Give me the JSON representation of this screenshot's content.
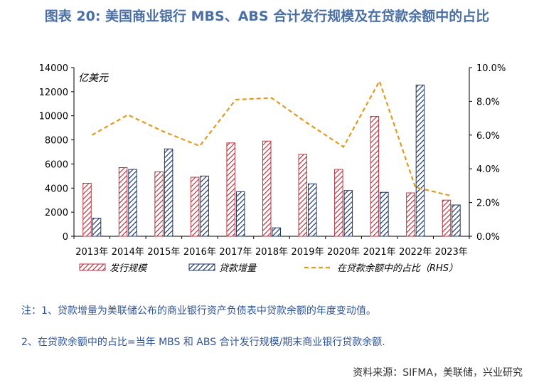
{
  "title": "图表 20: 美国商业银行 MBS、ABS 合计发行规模及在贷款余额中的占比",
  "chart_data": {
    "type": "bar",
    "categories": [
      "2013年",
      "2014年",
      "2015年",
      "2016年",
      "2017年",
      "2018年",
      "2019年",
      "2020年",
      "2021年",
      "2022年",
      "2023年"
    ],
    "series": [
      {
        "name": "发行规模",
        "type": "bar",
        "color": "#b5343f",
        "values": [
          4400,
          5700,
          5350,
          4900,
          7750,
          7900,
          6800,
          5550,
          9950,
          3600,
          3000
        ]
      },
      {
        "name": "贷款增量",
        "type": "bar",
        "color": "#1f3864",
        "values": [
          1500,
          5550,
          7250,
          5000,
          3700,
          700,
          4350,
          3800,
          3650,
          12550,
          2600
        ]
      },
      {
        "name": "在贷款余额中的占比（RHS）",
        "type": "line",
        "axis": "right",
        "color": "#e09b1e",
        "values": [
          6.0,
          7.2,
          6.2,
          5.35,
          8.1,
          8.2,
          6.7,
          5.3,
          9.2,
          2.9,
          2.4
        ]
      }
    ],
    "ylim": [
      0,
      14000
    ],
    "y_ticks": [
      "0",
      "2000",
      "4000",
      "6000",
      "8000",
      "10000",
      "12000",
      "14000"
    ],
    "y2lim": [
      0,
      10
    ],
    "y2_ticks": [
      "0.0%",
      "2.0%",
      "4.0%",
      "6.0%",
      "8.0%",
      "10.0%"
    ],
    "unit_label": "亿美元",
    "legend_position": "bottom"
  },
  "notes": [
    "注：1、贷款增量为美联储公布的商业银行资产负债表中贷款余额的年度变动值。",
    "2、在贷款余额中的占比=当年 MBS 和 ABS 合计发行规模/期末商业银行贷款余额."
  ],
  "source": "资料来源：SIFMA，美联储，兴业研究"
}
